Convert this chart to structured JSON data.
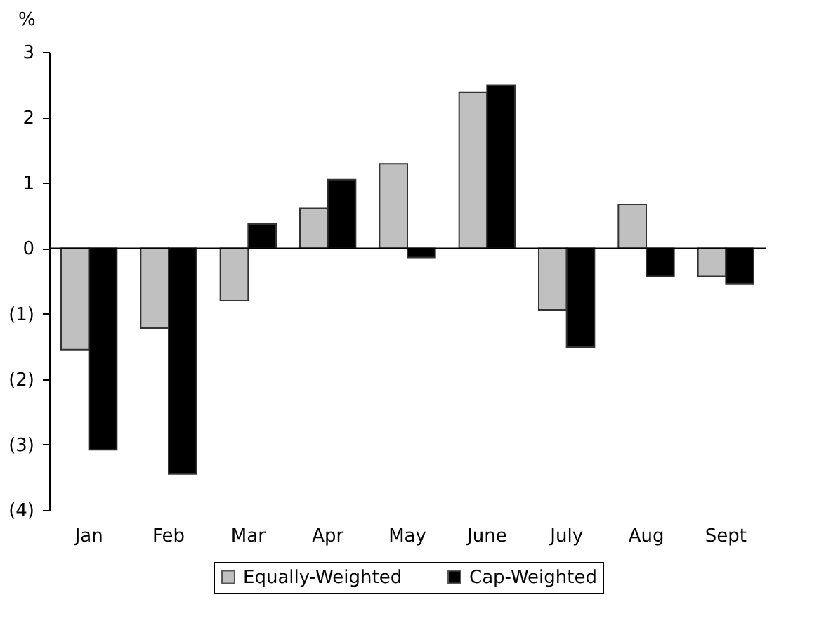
{
  "chart_data": {
    "type": "bar",
    "ylabel": "%",
    "categories": [
      "Jan",
      "Feb",
      "Mar",
      "Apr",
      "May",
      "June",
      "July",
      "Aug",
      "Sept"
    ],
    "series": [
      {
        "name": "Equally-Weighted",
        "color": "#c0c0c0",
        "values": [
          -1.55,
          -1.22,
          -0.8,
          0.61,
          1.29,
          2.38,
          -0.94,
          0.67,
          -0.43
        ]
      },
      {
        "name": "Cap-Weighted",
        "color": "#000000",
        "values": [
          -3.08,
          -3.45,
          0.37,
          1.05,
          -0.14,
          2.49,
          -1.51,
          -0.43,
          -0.54
        ]
      }
    ],
    "ylim": [
      -4,
      3
    ],
    "yticks": [
      3,
      2,
      1,
      0,
      {
        "value": -1,
        "label": "(1)"
      },
      {
        "value": -2,
        "label": "(2)"
      },
      {
        "value": -3,
        "label": "(3)"
      },
      {
        "value": -4,
        "label": "(4)"
      }
    ],
    "ref_lines": [
      {
        "axis": "y",
        "value": 0,
        "color": "#000000"
      }
    ],
    "legend": "bottom"
  }
}
